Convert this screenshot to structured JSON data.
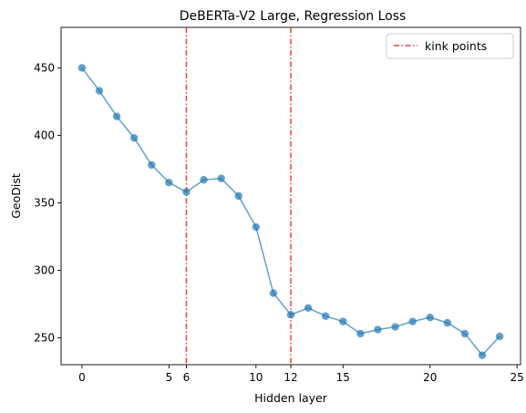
{
  "chart_data": {
    "type": "line",
    "title": "DeBERTa-V2 Large, Regression Loss",
    "xlabel": "Hidden layer",
    "ylabel": "GeoDist",
    "xlim": [
      -1.2,
      25.2
    ],
    "ylim": [
      230,
      480
    ],
    "xticks": [
      0,
      5,
      6,
      10,
      12,
      15,
      20,
      25
    ],
    "yticks": [
      250,
      300,
      350,
      400,
      450
    ],
    "grid": false,
    "legend_position": "top-right",
    "series": [
      {
        "color": "#1f77b4",
        "x": [
          0,
          1,
          2,
          3,
          4,
          5,
          6,
          7,
          8,
          9,
          10,
          11,
          12,
          13,
          14,
          15,
          16,
          17,
          18,
          19,
          20,
          21,
          22,
          23,
          24
        ],
        "y": [
          450,
          433,
          414,
          398,
          378,
          365,
          358,
          367,
          368,
          355,
          332,
          283,
          267,
          272,
          266,
          262,
          253,
          256,
          258,
          262,
          265,
          261,
          253,
          237,
          251
        ]
      }
    ],
    "vlines": {
      "name": "kink points",
      "color": "#e8423c",
      "x": [
        6,
        12
      ]
    }
  }
}
